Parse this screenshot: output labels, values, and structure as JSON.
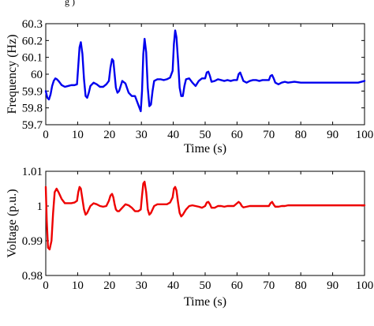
{
  "header_snippet": "g                                                        )",
  "chart_data": [
    {
      "type": "line",
      "xlabel": "Time (s)",
      "ylabel": "Frequency (Hz)",
      "xlim": [
        0,
        100
      ],
      "ylim": [
        59.7,
        60.3
      ],
      "xticks": [
        0,
        10,
        20,
        30,
        40,
        50,
        60,
        70,
        80,
        90,
        100
      ],
      "xtick_labels": [
        "0",
        "10",
        "20",
        "30",
        "40",
        "50",
        "60",
        "70",
        "80",
        "90",
        "100"
      ],
      "yticks": [
        59.7,
        59.8,
        59.9,
        60.0,
        60.1,
        60.2,
        60.3
      ],
      "ytick_labels": [
        "59.7",
        "59.8",
        "59.9",
        "60",
        "60.1",
        "60.2",
        "60.3"
      ],
      "grid": false,
      "series": [
        {
          "color": "#0000ee",
          "x": [
            0,
            0.5,
            1,
            1.5,
            2,
            2.5,
            3,
            3.5,
            4,
            5,
            6,
            7,
            8,
            9,
            9.8,
            10.2,
            10.6,
            11,
            11.5,
            12,
            12.5,
            13,
            13.5,
            14,
            15,
            16,
            17,
            18,
            19,
            19.8,
            20.3,
            20.8,
            21.2,
            21.6,
            22,
            22.5,
            23,
            23.5,
            24,
            25,
            26,
            27,
            28,
            29,
            29.8,
            30.2,
            30.6,
            31,
            31.5,
            32,
            32.5,
            33,
            33.5,
            34,
            35,
            36,
            37,
            38,
            39,
            39.8,
            40.2,
            40.6,
            41,
            41.5,
            42,
            42.5,
            43,
            43.5,
            44,
            45,
            46,
            47,
            48,
            49,
            50,
            50.5,
            51,
            51.5,
            52,
            53,
            54,
            55,
            56,
            57,
            58,
            59,
            60,
            60.5,
            61,
            61.5,
            62,
            63,
            64,
            65,
            66,
            67,
            68,
            69,
            70,
            70.5,
            71,
            71.5,
            72,
            73,
            74,
            75,
            76,
            78,
            80,
            82,
            85,
            90,
            95,
            98,
            100
          ],
          "y": [
            59.9,
            59.86,
            59.85,
            59.88,
            59.93,
            59.96,
            59.975,
            59.97,
            59.96,
            59.935,
            59.925,
            59.93,
            59.935,
            59.935,
            59.94,
            60.05,
            60.16,
            60.19,
            60.12,
            59.97,
            59.87,
            59.86,
            59.89,
            59.93,
            59.95,
            59.94,
            59.925,
            59.925,
            59.94,
            59.96,
            60.04,
            60.09,
            60.08,
            60.0,
            59.92,
            59.89,
            59.9,
            59.93,
            59.96,
            59.945,
            59.89,
            59.87,
            59.87,
            59.82,
            59.78,
            59.9,
            60.12,
            60.21,
            60.13,
            59.92,
            59.81,
            59.82,
            59.9,
            59.96,
            59.97,
            59.97,
            59.965,
            59.97,
            59.98,
            60.02,
            60.18,
            60.26,
            60.22,
            60.08,
            59.92,
            59.87,
            59.87,
            59.93,
            59.97,
            59.975,
            59.95,
            59.93,
            59.96,
            59.975,
            59.975,
            60.01,
            60.015,
            59.99,
            59.955,
            59.96,
            59.97,
            59.965,
            59.96,
            59.965,
            59.96,
            59.965,
            59.965,
            60.0,
            60.01,
            59.985,
            59.96,
            59.95,
            59.96,
            59.965,
            59.965,
            59.96,
            59.965,
            59.965,
            59.965,
            59.99,
            59.995,
            59.975,
            59.95,
            59.94,
            59.95,
            59.955,
            59.95,
            59.955,
            59.95,
            59.95,
            59.95,
            59.95,
            59.95,
            59.95,
            59.96
          ]
        }
      ]
    },
    {
      "type": "line",
      "xlabel": "Time (s)",
      "ylabel": "Voltage (p.u.)",
      "xlim": [
        0,
        100
      ],
      "ylim": [
        0.98,
        1.01
      ],
      "xticks": [
        0,
        10,
        20,
        30,
        40,
        50,
        60,
        70,
        80,
        90,
        100
      ],
      "xtick_labels": [
        "0",
        "10",
        "20",
        "30",
        "40",
        "50",
        "60",
        "70",
        "80",
        "90",
        "100"
      ],
      "yticks": [
        0.98,
        0.99,
        1.0,
        1.01
      ],
      "ytick_labels": [
        "0.98",
        "0.99",
        "1",
        "1.01"
      ],
      "grid": false,
      "series": [
        {
          "color": "#ee0000",
          "x": [
            0,
            0.3,
            0.7,
            1.2,
            1.8,
            2.3,
            2.8,
            3.4,
            4,
            5,
            6,
            7,
            8,
            9,
            9.8,
            10.2,
            10.6,
            11,
            11.5,
            12,
            12.5,
            13,
            14,
            15,
            16,
            17,
            18,
            19,
            19.8,
            20.3,
            20.8,
            21.2,
            21.6,
            22,
            22.5,
            23,
            24,
            25,
            26,
            27,
            28,
            29,
            29.8,
            30.2,
            30.6,
            31,
            31.5,
            32,
            32.5,
            33,
            34,
            35,
            36,
            37,
            38,
            39,
            39.8,
            40.2,
            40.6,
            41,
            41.5,
            42,
            42.5,
            43,
            44,
            45,
            46,
            47,
            48,
            49,
            50,
            50.5,
            51,
            51.5,
            52,
            53,
            54,
            55,
            56,
            57,
            58,
            59,
            60,
            60.5,
            61,
            61.5,
            62,
            63,
            64,
            65,
            66,
            67,
            68,
            69,
            70,
            70.5,
            71,
            71.5,
            72,
            73,
            74,
            75,
            76,
            80,
            85,
            90,
            95,
            100
          ],
          "y": [
            1.0055,
            0.996,
            0.988,
            0.9875,
            0.99,
            0.998,
            1.004,
            1.005,
            1.004,
            1.002,
            1.0008,
            1.0008,
            1.0008,
            1.001,
            1.0015,
            1.004,
            1.0055,
            1.005,
            1.002,
            0.999,
            0.9975,
            0.998,
            1.0,
            1.0008,
            1.0005,
            1.0,
            0.9998,
            1.0,
            1.0015,
            1.003,
            1.0035,
            1.0025,
            1.0005,
            0.999,
            0.9985,
            0.9985,
            0.9995,
            1.0005,
            1.0002,
            0.9995,
            0.9985,
            0.9985,
            0.999,
            1.003,
            1.0065,
            1.007,
            1.004,
            0.999,
            0.9975,
            0.998,
            1.0,
            1.0005,
            1.0005,
            1.0005,
            1.0005,
            1.001,
            1.0025,
            1.005,
            1.0055,
            1.0045,
            1.001,
            0.998,
            0.997,
            0.9975,
            0.999,
            1.0,
            1.0002,
            1.0,
            0.9998,
            0.9995,
            1.0,
            1.001,
            1.0012,
            1.0005,
            0.9995,
            0.9995,
            1.0,
            1.0,
            0.9998,
            1.0,
            1.0,
            1.0,
            1.0008,
            1.0012,
            1.0008,
            1.0,
            0.9996,
            0.9998,
            1.0,
            1.0,
            1.0,
            1.0,
            1.0,
            1.0,
            1.0,
            1.0008,
            1.0012,
            1.0004,
            0.9998,
            0.9998,
            1.0,
            1.0,
            1.0002,
            1.0002,
            1.0002,
            1.0002,
            1.0002,
            1.0002
          ]
        }
      ]
    }
  ]
}
